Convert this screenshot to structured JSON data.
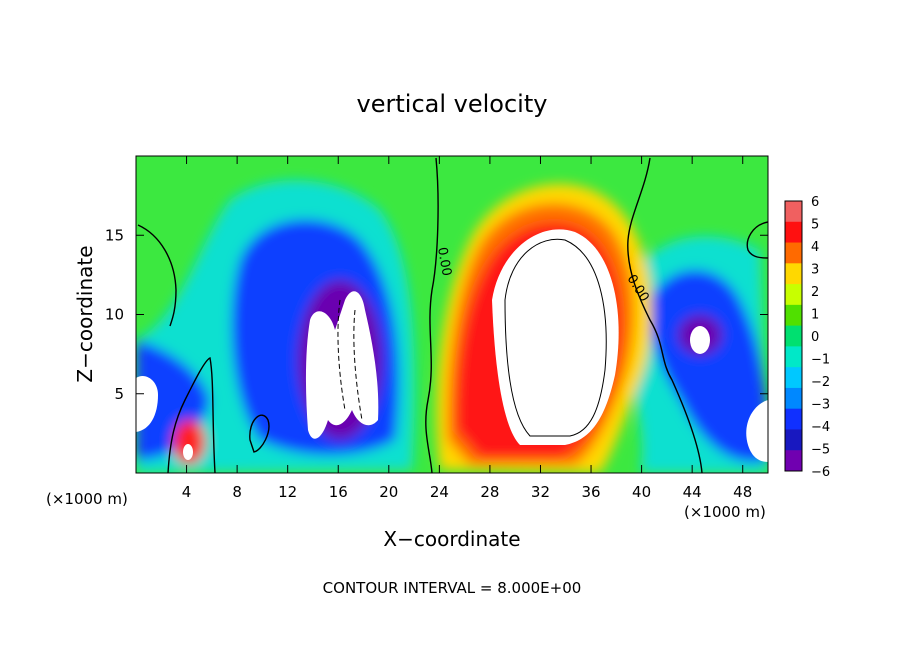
{
  "chart_data": {
    "type": "heatmap",
    "title": "vertical velocity",
    "xlabel": "X−coordinate",
    "ylabel": "Z−coordinate",
    "x_unit": "(×1000 m)",
    "y_unit": "(×1000 m)",
    "xlim": [
      0,
      50
    ],
    "ylim": [
      0,
      20
    ],
    "x_ticks": [
      "4",
      "8",
      "12",
      "16",
      "20",
      "24",
      "28",
      "32",
      "36",
      "40",
      "44",
      "48"
    ],
    "x_tick_values": [
      4,
      8,
      12,
      16,
      20,
      24,
      28,
      32,
      36,
      40,
      44,
      48
    ],
    "y_ticks": [
      "5",
      "10",
      "15"
    ],
    "y_tick_values": [
      5,
      10,
      15
    ],
    "colorbar": {
      "labels": [
        "6",
        "5",
        "4",
        "3",
        "2",
        "1",
        "0",
        "−1",
        "−2",
        "−3",
        "−4",
        "−5",
        "−6"
      ],
      "values": [
        6,
        5,
        4,
        3,
        2,
        1,
        0,
        -1,
        -2,
        -3,
        -4,
        -5,
        -6
      ],
      "colors": [
        "#f06060",
        "#ff1010",
        "#ff6a00",
        "#ffd800",
        "#c8ff00",
        "#50e000",
        "#00e070",
        "#00e8c8",
        "#00c8ff",
        "#0088ff",
        "#1030ff",
        "#1818c0",
        "#7000b0"
      ]
    },
    "contour_labels": [
      "0.00",
      "0.00"
    ],
    "contour_interval_text": "CONTOUR INTERVAL = 8.000E+00",
    "features": [
      {
        "kind": "updraft_core",
        "x": 32,
        "z": 9,
        "sign": "positive",
        "note": "strong updraft center, max exceeds 6"
      },
      {
        "kind": "downdraft",
        "x": 16,
        "z": 7,
        "sign": "negative"
      },
      {
        "kind": "downdraft",
        "x": 45,
        "z": 8,
        "sign": "negative"
      },
      {
        "kind": "updraft",
        "x": 4,
        "z": 2,
        "sign": "positive"
      }
    ]
  }
}
